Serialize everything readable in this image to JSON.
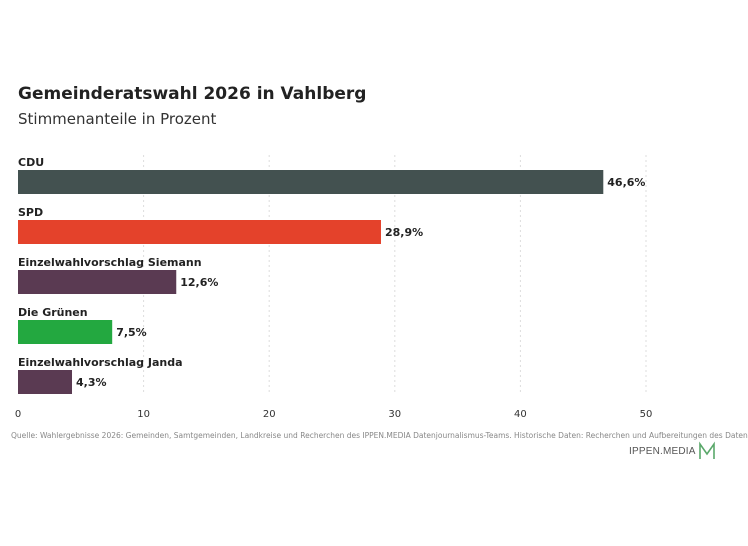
{
  "chart_data": {
    "type": "bar",
    "orientation": "horizontal",
    "title": "Gemeinderatswahl 2026 in Vahlberg",
    "subtitle": "Stimmenanteile in Prozent",
    "categories": [
      "CDU",
      "SPD",
      "Einzelwahlvorschlag Siemann",
      "Die Grünen",
      "Einzelwahlvorschlag Janda"
    ],
    "values": [
      46.6,
      28.9,
      12.6,
      7.5,
      4.3
    ],
    "value_labels": [
      "46,6%",
      "28,9%",
      "12,6%",
      "7,5%",
      "4,3%"
    ],
    "colors": [
      "#435150",
      "#e4422b",
      "#5a3a52",
      "#23a840",
      "#5a3a52"
    ],
    "xlim": [
      0,
      50
    ],
    "xticks": [
      0,
      10,
      20,
      30,
      40,
      50
    ],
    "grid": true
  },
  "source": "Quelle: Wahlergebnisse 2026: Gemeinden, Samtgemeinden, Landkreise und Recherchen des IPPEN.MEDIA Datenjournalismus-Teams. Historische Daten: Recherchen und Aufbereitungen des Daten",
  "logo": {
    "text": "IPPEN.MEDIA",
    "color": "#5aa86a"
  }
}
